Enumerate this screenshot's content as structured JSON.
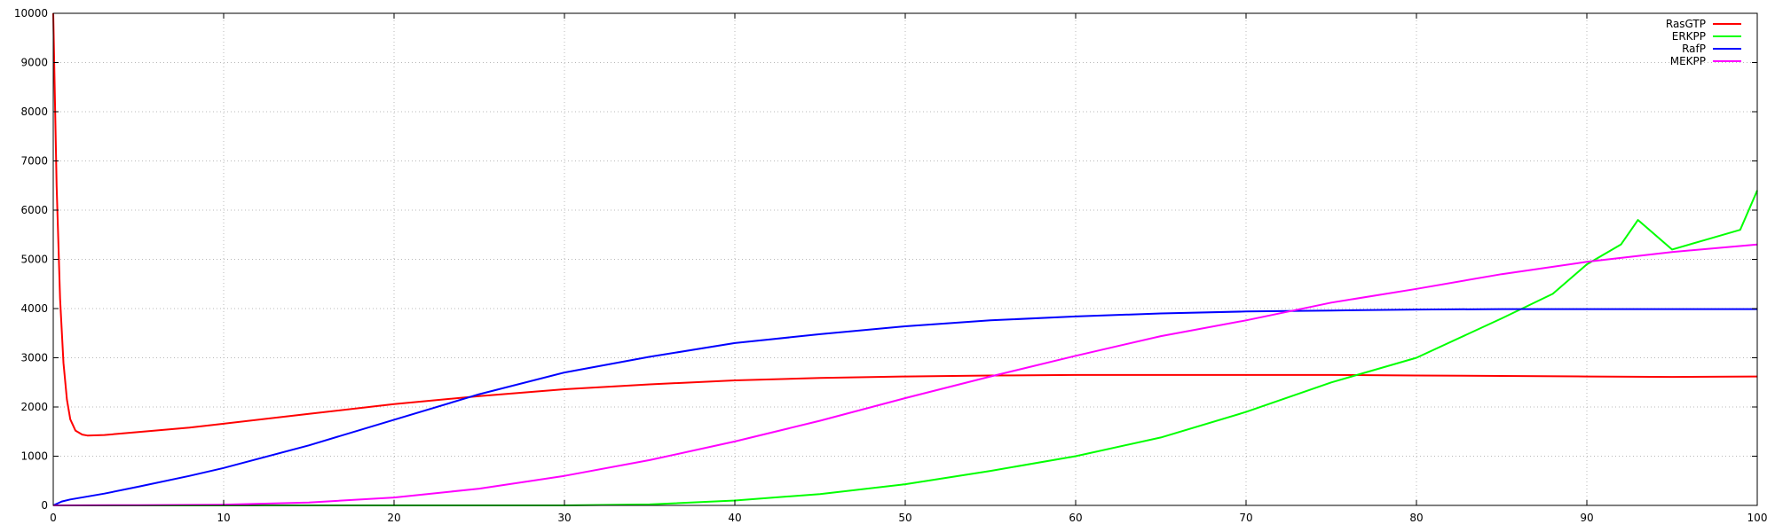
{
  "chart_data": {
    "type": "line",
    "title": "",
    "xlabel": "",
    "ylabel": "",
    "xlim": [
      0,
      100
    ],
    "ylim": [
      0,
      10000
    ],
    "x_ticks": [
      "0",
      "10",
      "20",
      "30",
      "40",
      "50",
      "60",
      "70",
      "80",
      "90",
      "100"
    ],
    "y_ticks": [
      "0",
      "1000",
      "2000",
      "3000",
      "4000",
      "5000",
      "6000",
      "7000",
      "8000",
      "9000",
      "10000"
    ],
    "grid": true,
    "legend_position": "top-right",
    "series": [
      {
        "name": "RasGTP",
        "color": "#ff0000",
        "points": [
          [
            0,
            10000
          ],
          [
            0.2,
            6500
          ],
          [
            0.4,
            4200
          ],
          [
            0.6,
            2900
          ],
          [
            0.8,
            2150
          ],
          [
            1,
            1750
          ],
          [
            1.3,
            1520
          ],
          [
            1.7,
            1440
          ],
          [
            2,
            1420
          ],
          [
            3,
            1430
          ],
          [
            5,
            1490
          ],
          [
            8,
            1580
          ],
          [
            10,
            1660
          ],
          [
            15,
            1860
          ],
          [
            20,
            2060
          ],
          [
            25,
            2220
          ],
          [
            30,
            2360
          ],
          [
            35,
            2460
          ],
          [
            40,
            2540
          ],
          [
            45,
            2590
          ],
          [
            50,
            2620
          ],
          [
            55,
            2640
          ],
          [
            60,
            2650
          ],
          [
            65,
            2650
          ],
          [
            70,
            2650
          ],
          [
            75,
            2650
          ],
          [
            80,
            2640
          ],
          [
            85,
            2630
          ],
          [
            90,
            2620
          ],
          [
            95,
            2610
          ],
          [
            100,
            2620
          ]
        ]
      },
      {
        "name": "ERKPP",
        "color": "#00ff00",
        "points": [
          [
            0,
            0
          ],
          [
            10,
            0
          ],
          [
            20,
            0
          ],
          [
            30,
            0
          ],
          [
            35,
            20
          ],
          [
            40,
            100
          ],
          [
            45,
            230
          ],
          [
            50,
            430
          ],
          [
            55,
            700
          ],
          [
            60,
            1000
          ],
          [
            65,
            1380
          ],
          [
            70,
            1900
          ],
          [
            75,
            2500
          ],
          [
            80,
            3000
          ],
          [
            85,
            3800
          ],
          [
            88,
            4300
          ],
          [
            90,
            4900
          ],
          [
            92,
            5300
          ],
          [
            93,
            5800
          ],
          [
            95,
            5200
          ],
          [
            97,
            5400
          ],
          [
            99,
            5600
          ],
          [
            100,
            6400
          ]
        ]
      },
      {
        "name": "RafP",
        "color": "#0000ff",
        "points": [
          [
            0,
            0
          ],
          [
            0.5,
            80
          ],
          [
            1,
            120
          ],
          [
            3,
            240
          ],
          [
            5,
            380
          ],
          [
            8,
            600
          ],
          [
            10,
            760
          ],
          [
            15,
            1220
          ],
          [
            20,
            1740
          ],
          [
            25,
            2260
          ],
          [
            30,
            2700
          ],
          [
            35,
            3020
          ],
          [
            40,
            3300
          ],
          [
            45,
            3480
          ],
          [
            50,
            3640
          ],
          [
            55,
            3760
          ],
          [
            60,
            3840
          ],
          [
            65,
            3900
          ],
          [
            70,
            3940
          ],
          [
            75,
            3960
          ],
          [
            80,
            3980
          ],
          [
            85,
            3990
          ],
          [
            90,
            3990
          ],
          [
            95,
            3990
          ],
          [
            100,
            3990
          ]
        ]
      },
      {
        "name": "MEKPP",
        "color": "#ff00ff",
        "points": [
          [
            0,
            0
          ],
          [
            5,
            5
          ],
          [
            10,
            15
          ],
          [
            15,
            60
          ],
          [
            20,
            160
          ],
          [
            25,
            340
          ],
          [
            30,
            600
          ],
          [
            35,
            920
          ],
          [
            40,
            1300
          ],
          [
            45,
            1720
          ],
          [
            50,
            2180
          ],
          [
            55,
            2620
          ],
          [
            60,
            3040
          ],
          [
            65,
            3440
          ],
          [
            70,
            3760
          ],
          [
            75,
            4120
          ],
          [
            80,
            4400
          ],
          [
            85,
            4700
          ],
          [
            90,
            4950
          ],
          [
            95,
            5150
          ],
          [
            100,
            5300
          ]
        ]
      }
    ]
  }
}
